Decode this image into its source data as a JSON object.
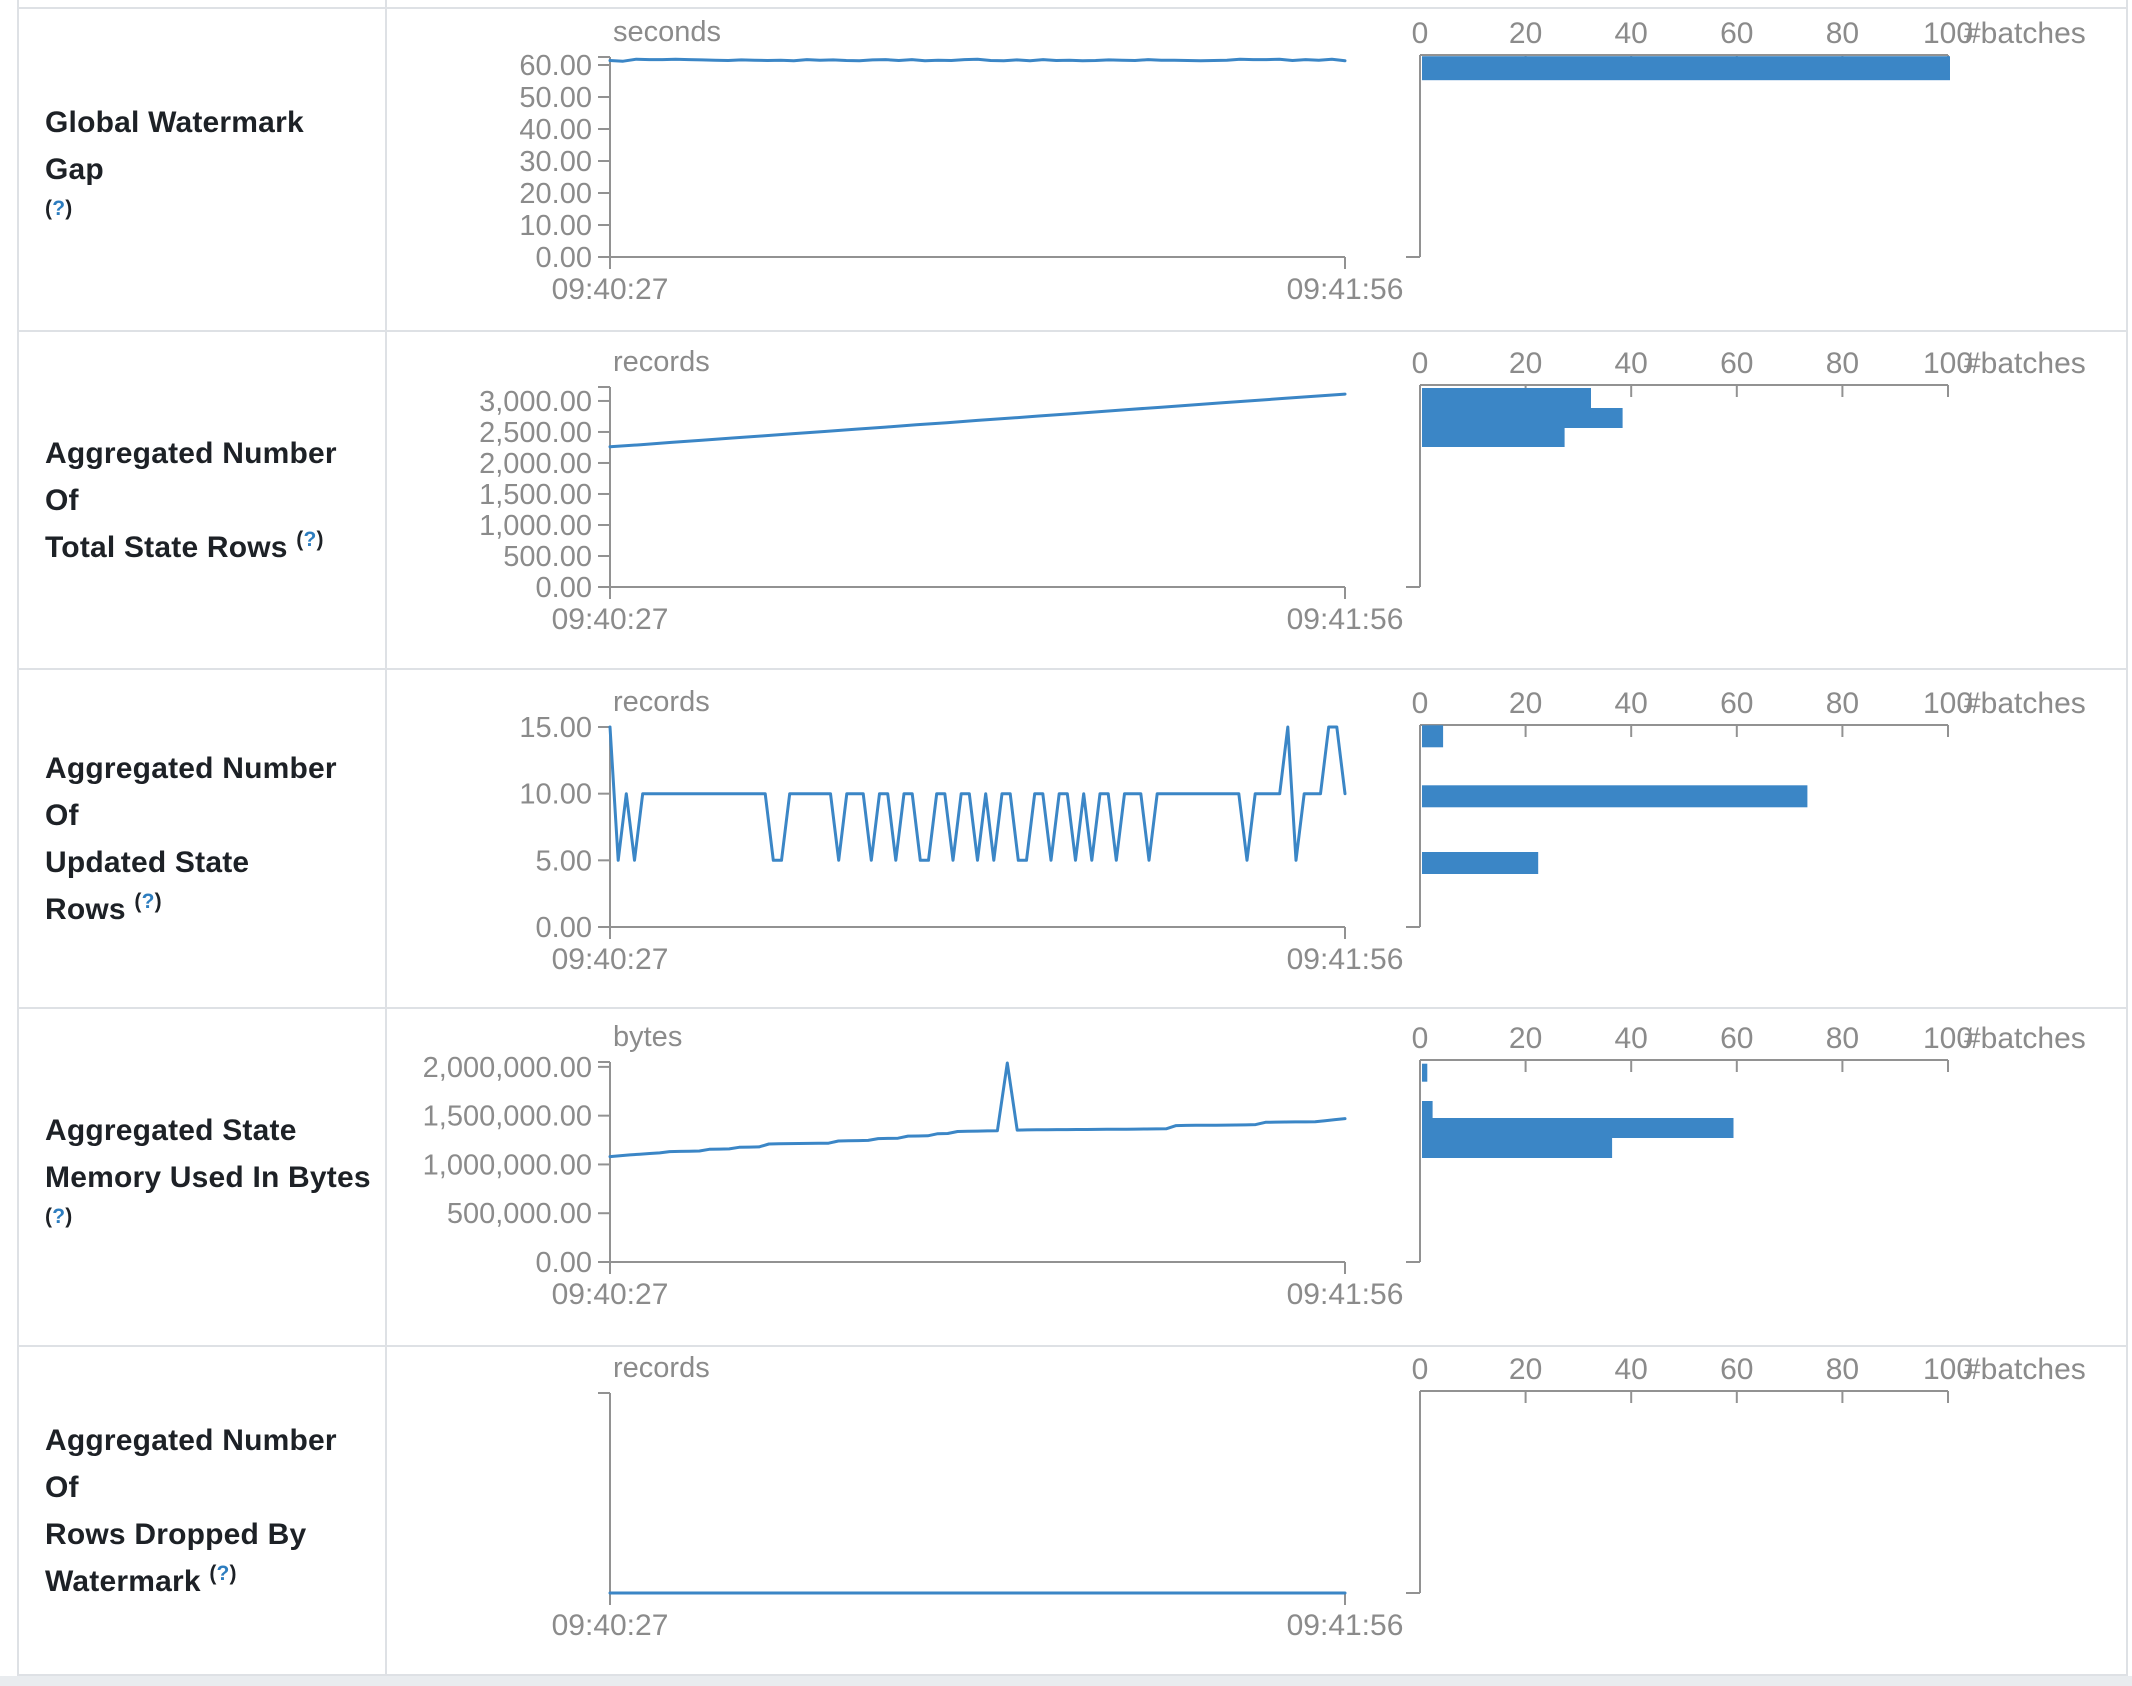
{
  "page": {
    "background": "#ffffff"
  },
  "colors": {
    "accent_blue": "#3b86c6",
    "axis_gray": "#929292",
    "chart_text_gray": "#8b8b8b",
    "label_text": "#1d2126",
    "help_blue": "#2d7dbf",
    "border": "#dee1e5",
    "bottom_strip": "#e9ecef"
  },
  "help_marker": {
    "open": "(",
    "q": "?",
    "close": ")"
  },
  "histogram_axis": {
    "tick_labels": [
      "0",
      "20",
      "40",
      "60",
      "80",
      "100"
    ],
    "tick_values": [
      0,
      20,
      40,
      60,
      80,
      100
    ],
    "axis_label": "#batches",
    "max": 100
  },
  "x_axis": {
    "start_label": "09:40:27",
    "end_label": "09:41:56"
  },
  "rows": [
    {
      "label_lines": [
        "Global Watermark Gap",
        ""
      ],
      "timeline": {
        "type": "line",
        "unit": "seconds",
        "y_max": 62.5,
        "y_ticks": [
          {
            "v": 60,
            "label": "60.00"
          },
          {
            "v": 50,
            "label": "50.00"
          },
          {
            "v": 40,
            "label": "40.00"
          },
          {
            "v": 30,
            "label": "30.00"
          },
          {
            "v": 20,
            "label": "20.00"
          },
          {
            "v": 10,
            "label": "10.00"
          },
          {
            "v": 0,
            "label": "0.00"
          }
        ],
        "values": [
          61.4,
          61.2,
          61.8,
          61.7,
          61.7,
          61.8,
          61.7,
          61.6,
          61.5,
          61.4,
          61.6,
          61.5,
          61.4,
          61.5,
          61.3,
          61.7,
          61.5,
          61.6,
          61.4,
          61.3,
          61.6,
          61.7,
          61.4,
          61.7,
          61.3,
          61.5,
          61.4,
          61.7,
          61.8,
          61.4,
          61.3,
          61.6,
          61.3,
          61.7,
          61.4,
          61.5,
          61.3,
          61.4,
          61.6,
          61.5,
          61.4,
          61.7,
          61.5,
          61.5,
          61.4,
          61.3,
          61.4,
          61.5,
          61.8,
          61.7,
          61.7,
          61.8,
          61.4,
          61.7,
          61.5,
          61.8,
          61.3
        ]
      },
      "histogram": {
        "type": "bar",
        "bars": [
          {
            "bin_center": 59,
            "count": 100,
            "thickness": 24
          }
        ]
      }
    },
    {
      "label_lines": [
        "Aggregated Number Of",
        "Total State Rows"
      ],
      "timeline": {
        "type": "line",
        "unit": "records",
        "y_max": 3225,
        "y_ticks": [
          {
            "v": 3000,
            "label": "3,000.00"
          },
          {
            "v": 2500,
            "label": "2,500.00"
          },
          {
            "v": 2000,
            "label": "2,000.00"
          },
          {
            "v": 1500,
            "label": "1,500.00"
          },
          {
            "v": 1000,
            "label": "1,000.00"
          },
          {
            "v": 500,
            "label": "500.00"
          },
          {
            "v": 0,
            "label": "0.00"
          }
        ],
        "values": [
          2260,
          2295,
          2331,
          2366,
          2402,
          2437,
          2473,
          2508,
          2544,
          2579,
          2615,
          2650,
          2686,
          2721,
          2757,
          2792,
          2828,
          2863,
          2899,
          2934,
          2970,
          3005,
          3041,
          3076,
          3110
        ]
      },
      "histogram": {
        "type": "bar",
        "bars": [
          {
            "bin_center": 3048,
            "count": 32,
            "thickness": 20
          },
          {
            "bin_center": 2725,
            "count": 38,
            "thickness": 20
          },
          {
            "bin_center": 2419,
            "count": 27,
            "thickness": 20
          }
        ]
      }
    },
    {
      "label_lines": [
        "Aggregated Number Of",
        "Updated State Rows"
      ],
      "timeline": {
        "type": "line",
        "unit": "records",
        "y_max": 15,
        "y_ticks": [
          {
            "v": 15,
            "label": "15.00"
          },
          {
            "v": 10,
            "label": "10.00"
          },
          {
            "v": 5,
            "label": "5.00"
          },
          {
            "v": 0,
            "label": "0.00"
          }
        ],
        "values": [
          15,
          5,
          10,
          5,
          10,
          10,
          10,
          10,
          10,
          10,
          10,
          10,
          10,
          10,
          10,
          10,
          10,
          10,
          10,
          10,
          5,
          5,
          10,
          10,
          10,
          10,
          10,
          10,
          5,
          10,
          10,
          10,
          5,
          10,
          10,
          5,
          10,
          10,
          5,
          5,
          10,
          10,
          5,
          10,
          10,
          5,
          10,
          5,
          10,
          10,
          5,
          5,
          10,
          10,
          5,
          10,
          10,
          5,
          10,
          5,
          10,
          10,
          5,
          10,
          10,
          10,
          5,
          10,
          10,
          10,
          10,
          10,
          10,
          10,
          10,
          10,
          10,
          10,
          5,
          10,
          10,
          10,
          10,
          15,
          5,
          10,
          10,
          10,
          15,
          15,
          10
        ]
      },
      "histogram": {
        "type": "bar",
        "bars": [
          {
            "bin_center": 14.3,
            "count": 4,
            "thickness": 22
          },
          {
            "bin_center": 9.8,
            "count": 73,
            "thickness": 22
          },
          {
            "bin_center": 4.8,
            "count": 22,
            "thickness": 22
          }
        ]
      }
    },
    {
      "label_lines": [
        "Aggregated State",
        "Memory Used In Bytes",
        ""
      ],
      "timeline": {
        "type": "line",
        "unit": "bytes",
        "y_max": 2050000,
        "y_ticks": [
          {
            "v": 2000000,
            "label": "2,000,000.00"
          },
          {
            "v": 1500000,
            "label": "1,500,000.00"
          },
          {
            "v": 1000000,
            "label": "1,000,000.00"
          },
          {
            "v": 500000,
            "label": "500,000.00"
          },
          {
            "v": 0,
            "label": "0.00"
          }
        ],
        "values": [
          1080000,
          1090000,
          1098000,
          1105000,
          1112000,
          1118000,
          1132000,
          1134000,
          1136000,
          1138000,
          1155000,
          1157000,
          1159000,
          1176000,
          1178000,
          1180000,
          1210000,
          1212000,
          1214000,
          1215000,
          1216000,
          1217000,
          1218000,
          1240000,
          1242000,
          1244000,
          1246000,
          1265000,
          1267000,
          1269000,
          1290000,
          1292000,
          1294000,
          1315000,
          1317000,
          1338000,
          1340000,
          1342000,
          1344000,
          1346000,
          2040000,
          1352000,
          1354000,
          1355000,
          1356000,
          1357000,
          1357000,
          1358000,
          1358000,
          1359000,
          1360000,
          1360000,
          1361000,
          1362000,
          1363000,
          1364000,
          1365000,
          1398000,
          1400000,
          1401000,
          1402000,
          1402000,
          1403000,
          1404000,
          1405000,
          1408000,
          1432000,
          1434000,
          1435000,
          1436000,
          1436000,
          1437000,
          1448000,
          1460000,
          1470000
        ]
      },
      "histogram": {
        "type": "bar",
        "bars": [
          {
            "bin_center": 1940000,
            "count": 1,
            "thickness": 18
          },
          {
            "bin_center": 1558000,
            "count": 2,
            "thickness": 18
          },
          {
            "bin_center": 1373000,
            "count": 59,
            "thickness": 20
          },
          {
            "bin_center": 1168000,
            "count": 36,
            "thickness": 20
          }
        ]
      }
    },
    {
      "label_lines": [
        "Aggregated Number Of",
        "Rows Dropped By",
        "Watermark"
      ],
      "timeline": {
        "type": "line",
        "unit": "records",
        "y_max": 1,
        "y_ticks": [],
        "values": [
          0,
          0
        ]
      },
      "histogram": {
        "type": "bar",
        "bars": []
      }
    }
  ]
}
